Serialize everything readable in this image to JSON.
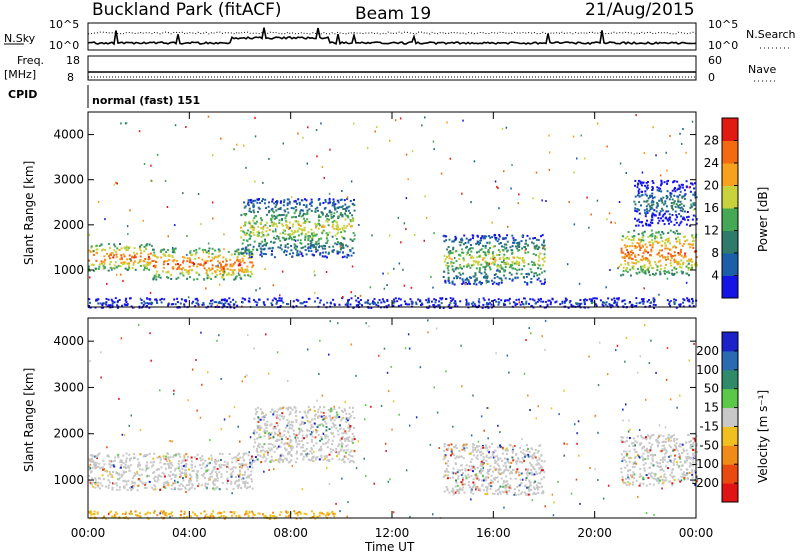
{
  "header": {
    "station": "Buckland Park (fitACF)",
    "beam": "Beam 19",
    "date": "21/Aug/2015"
  },
  "panels": {
    "noise": {
      "left_label": "N.Sky",
      "right_label": "N.Search",
      "left_ticks": [
        "10^5",
        "10^0"
      ],
      "right_ticks": [
        "10^5",
        "10^0"
      ]
    },
    "freq": {
      "label_top": "Freq.",
      "label_unit": "[MHz]",
      "left_ticks": [
        "18",
        "8"
      ],
      "right_label": "Nave",
      "right_ticks": [
        "60",
        "0"
      ]
    },
    "cpid": {
      "label": "CPID",
      "text": "normal (fast) 151"
    }
  },
  "chart_data": [
    {
      "type": "heatmap",
      "quantity": "power",
      "ylabel": "Slant Range [km]",
      "xlabel": "",
      "ylim": [
        180,
        4500
      ],
      "y_ticks": [
        "1000",
        "2000",
        "3000",
        "4000"
      ],
      "colorbar": {
        "label": "Power [dB]",
        "ticks": [
          "4",
          "8",
          "12",
          "16",
          "20",
          "24",
          "28"
        ],
        "colors": [
          "#1414e6",
          "#1c5fa8",
          "#2f7a6a",
          "#45a855",
          "#c8d23c",
          "#f6a21e",
          "#f46a10",
          "#e21b12"
        ]
      },
      "echo_regions": [
        {
          "t_start": 0.0,
          "t_end": 2.5,
          "range_low": 1000,
          "range_high": 1600,
          "power_db": 28
        },
        {
          "t_start": 2.5,
          "t_end": 6.5,
          "range_low": 800,
          "range_high": 1500,
          "power_db": 28
        },
        {
          "t_start": 6.0,
          "t_end": 10.5,
          "range_low": 1300,
          "range_high": 2600,
          "power_db": 20
        },
        {
          "t_start": 14.0,
          "t_end": 18.0,
          "range_low": 700,
          "range_high": 1800,
          "power_db": 20
        },
        {
          "t_start": 21.0,
          "t_end": 24.0,
          "range_low": 900,
          "range_high": 1900,
          "power_db": 28
        },
        {
          "t_start": 21.5,
          "t_end": 24.0,
          "range_low": 2000,
          "range_high": 3000,
          "power_db": 12
        },
        {
          "t_start": 0.0,
          "t_end": 24.0,
          "range_low": 180,
          "range_high": 400,
          "power_db": 8
        }
      ]
    },
    {
      "type": "heatmap",
      "quantity": "velocity",
      "ylabel": "Slant Range [km]",
      "xlabel": "Time UT",
      "ylim": [
        180,
        4500
      ],
      "y_ticks": [
        "1000",
        "2000",
        "3000",
        "4000"
      ],
      "x_ticks": [
        "00:00",
        "04:00",
        "08:00",
        "12:00",
        "16:00",
        "20:00",
        "00:00"
      ],
      "colorbar": {
        "label": "Velocity [m s⁻¹]",
        "ticks": [
          "200",
          "100",
          "50",
          "15",
          "-15",
          "-50",
          "-100",
          "-200"
        ],
        "colors": [
          "#1a22c8",
          "#2a6ab0",
          "#2f8a6a",
          "#5cc84a",
          "#c8c8c8",
          "#f0c020",
          "#f08a18",
          "#e84a10",
          "#e01414"
        ]
      },
      "echo_regions": [
        {
          "t_start": 0.0,
          "t_end": 6.5,
          "range_low": 800,
          "range_high": 1600,
          "velocity": 0
        },
        {
          "t_start": 6.5,
          "t_end": 10.5,
          "range_low": 1400,
          "range_high": 2600,
          "velocity": 0
        },
        {
          "t_start": 14.0,
          "t_end": 18.0,
          "range_low": 700,
          "range_high": 1800,
          "velocity": 0
        },
        {
          "t_start": 21.0,
          "t_end": 24.0,
          "range_low": 900,
          "range_high": 2000,
          "velocity": 0
        },
        {
          "t_start": 0.0,
          "t_end": 10.0,
          "range_low": 180,
          "range_high": 350,
          "velocity": -50
        }
      ]
    }
  ]
}
